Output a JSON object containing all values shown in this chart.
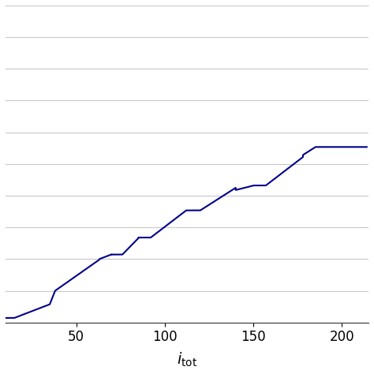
{
  "xlabel_text": "$i_{\\mathrm{tot}}$",
  "line_color": "#00008B",
  "line_width": 1.5,
  "xlim": [
    10,
    215
  ],
  "ylim": [
    0.0,
    1.4
  ],
  "xticks": [
    50,
    100,
    150,
    200
  ],
  "grid_color": "#c8c8c8",
  "grid_linewidth": 0.8,
  "background_color": "#ffffff",
  "figsize": [
    4.74,
    4.74
  ],
  "dpi": 100
}
